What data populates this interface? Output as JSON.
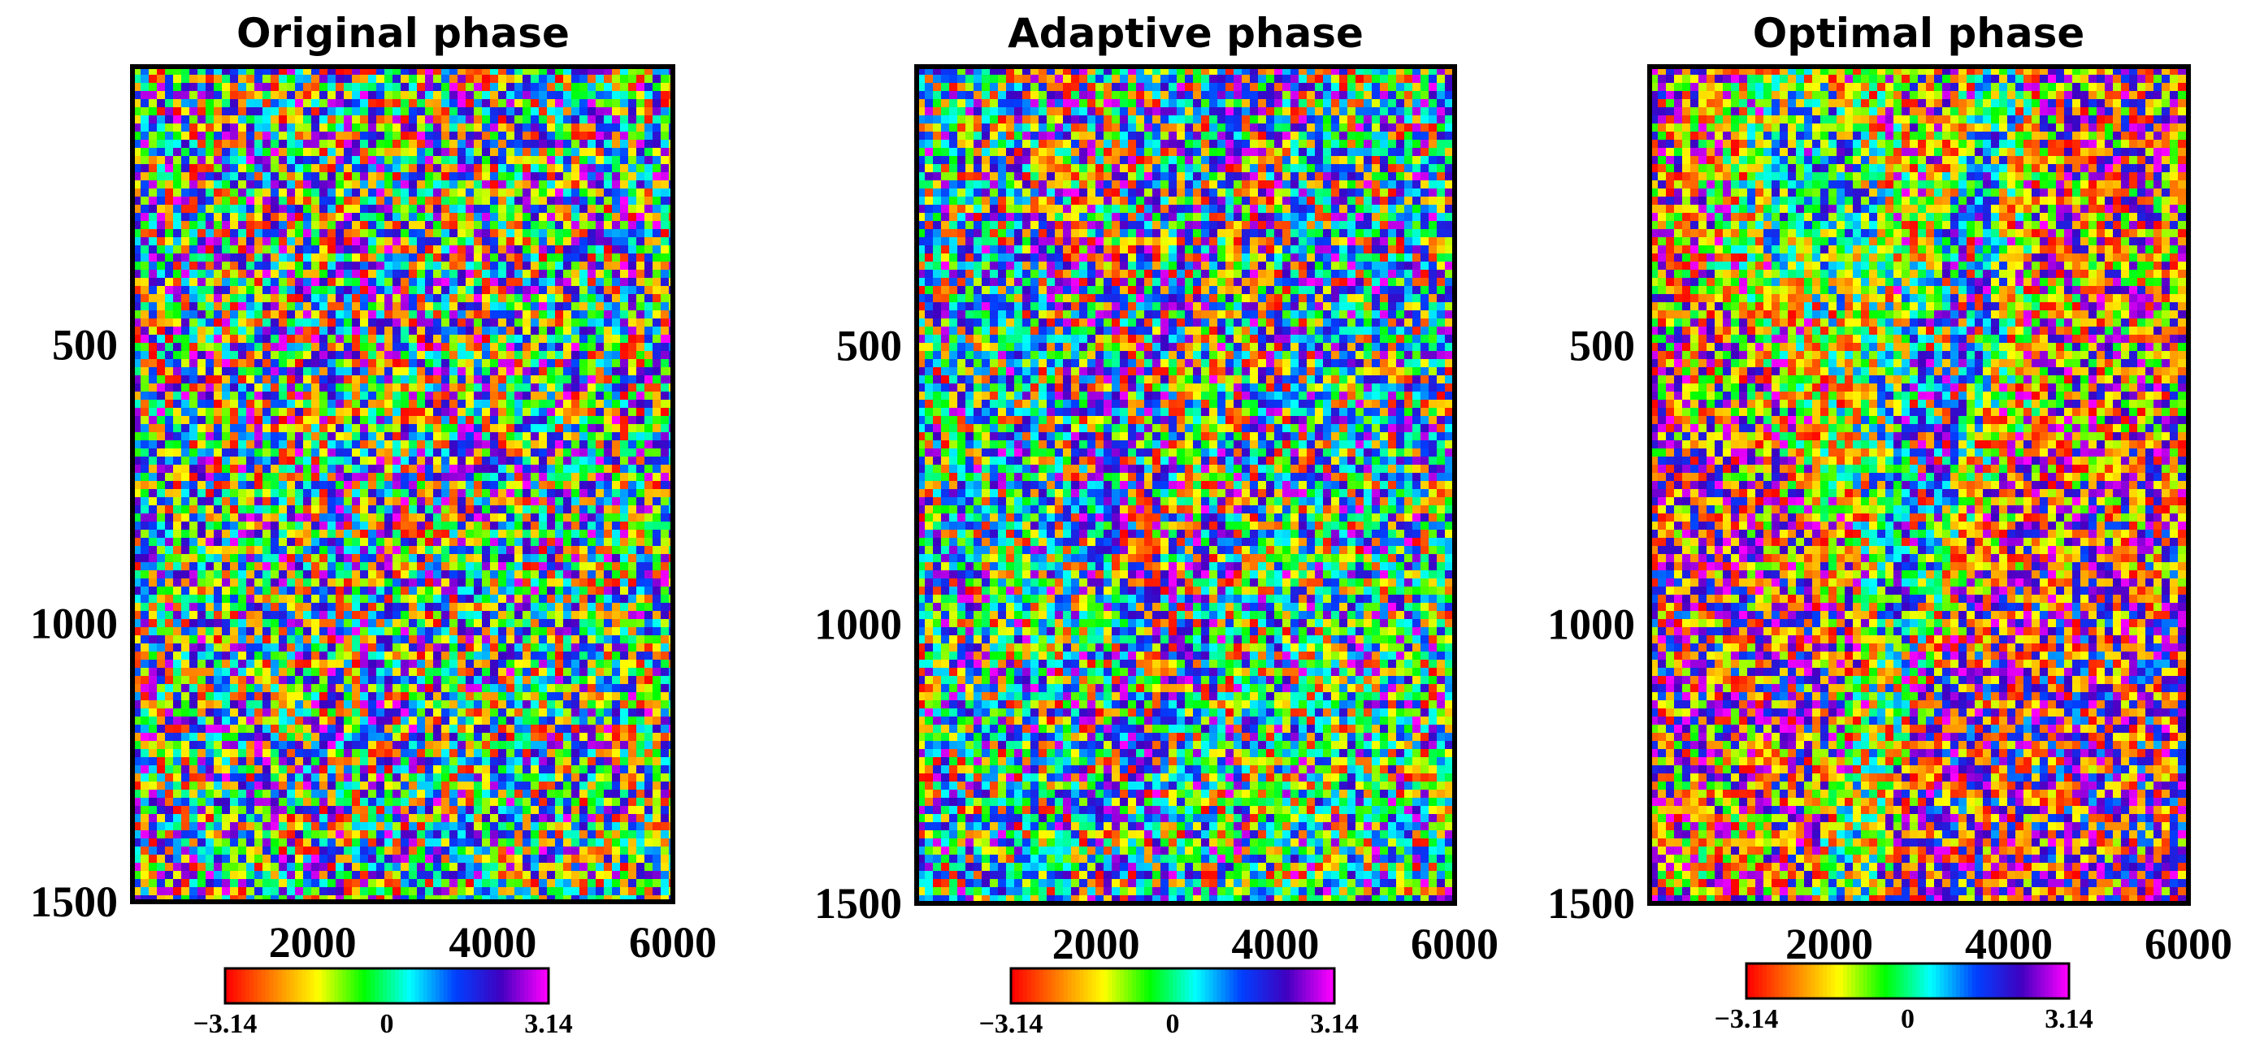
{
  "chart_data": [
    {
      "type": "heatmap",
      "title": "Original phase",
      "variant": "original",
      "x_ticks": [
        2000,
        4000,
        6000
      ],
      "y_ticks": [
        500,
        1000,
        1500
      ],
      "colorbar": {
        "min": -3.14,
        "max": 3.14,
        "ticks": [
          "−3.14",
          "0",
          "3.14"
        ],
        "colormap": [
          "#ff0000",
          "#ff8000",
          "#ffff00",
          "#00ff00",
          "#00ffff",
          "#0040ff",
          "#4000c0",
          "#ff00ff"
        ]
      }
    },
    {
      "type": "heatmap",
      "title": "Adaptive phase",
      "variant": "adaptive",
      "x_ticks": [
        2000,
        4000,
        6000
      ],
      "y_ticks": [
        500,
        1000,
        1500
      ],
      "colorbar": {
        "min": -3.14,
        "max": 3.14,
        "ticks": [
          "−3.14",
          "0",
          "3.14"
        ],
        "colormap": [
          "#ff0000",
          "#ff8000",
          "#ffff00",
          "#00ff00",
          "#00ffff",
          "#0040ff",
          "#4000c0",
          "#ff00ff"
        ]
      }
    },
    {
      "type": "heatmap",
      "title": "Optimal phase",
      "variant": "optimal",
      "x_ticks": [
        2000,
        4000,
        6000
      ],
      "y_ticks": [
        500,
        1000,
        1500
      ],
      "colorbar": {
        "min": -3.14,
        "max": 3.14,
        "ticks": [
          "−3.14",
          "0",
          "3.14"
        ],
        "colormap": [
          "#ff0000",
          "#ff8000",
          "#ffff00",
          "#00ff00",
          "#00ffff",
          "#0040ff",
          "#4000c0",
          "#ff00ff"
        ]
      }
    }
  ]
}
